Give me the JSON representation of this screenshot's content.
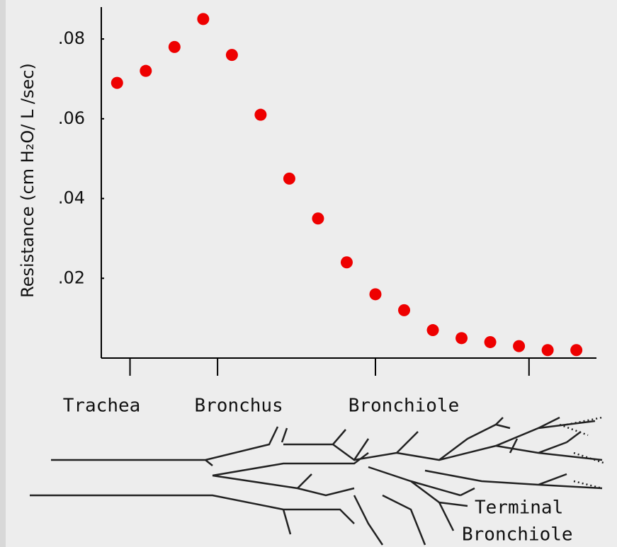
{
  "chart_data": {
    "type": "scatter",
    "y_label": "Resistance (cm H₂O/ L /sec)",
    "x": [
      0,
      1,
      2,
      3,
      4,
      5,
      6,
      7,
      8,
      9,
      10,
      11,
      12,
      13,
      14,
      15,
      16
    ],
    "values": [
      0.069,
      0.072,
      0.078,
      0.085,
      0.076,
      0.061,
      0.045,
      0.035,
      0.024,
      0.016,
      0.012,
      0.007,
      0.005,
      0.004,
      0.003,
      0.002,
      0.002
    ],
    "color": "#ee0000",
    "xlim": [
      -0.55,
      16.7
    ],
    "xticks": [
      {
        "value": 0.45,
        "label": "Trachea"
      },
      {
        "value": 3.5,
        "label": "Bronchus"
      },
      {
        "value": 9.0,
        "label": "Bronchiole"
      },
      {
        "value": 14.35,
        "label": null
      }
    ],
    "ylim": [
      0,
      0.088
    ],
    "yticks": [
      {
        "value": 0.02,
        "label": ".02"
      },
      {
        "value": 0.04,
        "label": ".04"
      },
      {
        "value": 0.06,
        "label": ".06"
      },
      {
        "value": 0.08,
        "label": ".08"
      }
    ],
    "annotations": [
      "Terminal",
      "Bronchiole"
    ]
  }
}
